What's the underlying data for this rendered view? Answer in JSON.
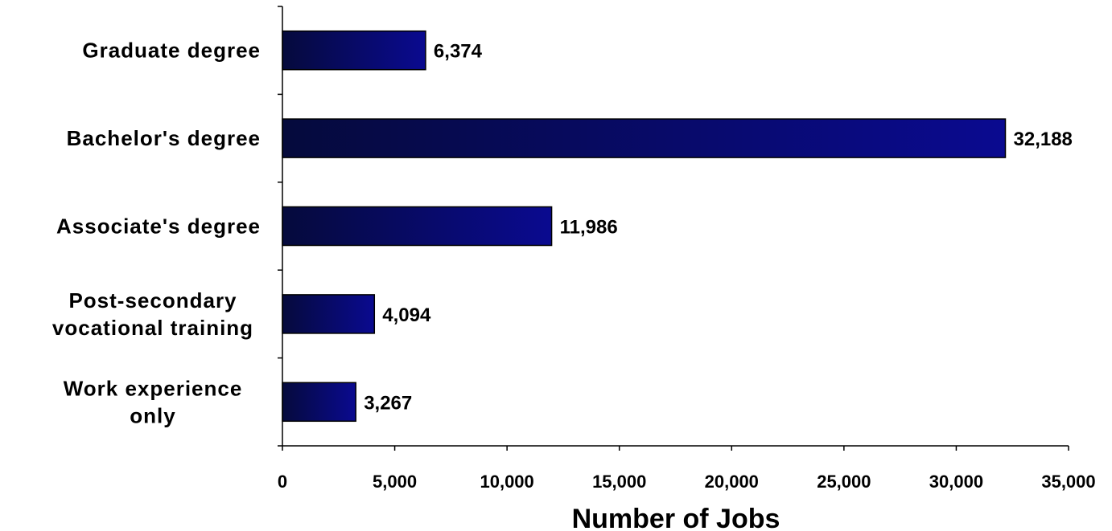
{
  "chart_data": {
    "type": "bar",
    "orientation": "horizontal",
    "categories": [
      "Graduate degree",
      "Bachelor's degree",
      "Associate's degree",
      "Post-secondary vocational training",
      "Work experience only"
    ],
    "category_lines": [
      [
        "Graduate degree"
      ],
      [
        "Bachelor's degree"
      ],
      [
        "Associate's degree"
      ],
      [
        "Post-secondary",
        "vocational training"
      ],
      [
        "Work experience",
        "only"
      ]
    ],
    "values": [
      6374,
      32188,
      11986,
      4094,
      3267
    ],
    "data_labels": [
      "6,374",
      "32,188",
      "11,986",
      "4,094",
      "3,267"
    ],
    "xlabel": "Number of Jobs",
    "ylabel": "",
    "xlim": [
      0,
      35000
    ],
    "xticks": [
      0,
      5000,
      10000,
      15000,
      20000,
      25000,
      30000,
      35000
    ],
    "xtick_labels": [
      "0",
      "5,000",
      "10,000",
      "15,000",
      "20,000",
      "25,000",
      "30,000",
      "35,000"
    ],
    "grid": false,
    "colors": {
      "bar_dark": "#050a3c",
      "bar_light": "#0a0a90",
      "bar_border": "#000000",
      "axis": "#000000"
    }
  }
}
